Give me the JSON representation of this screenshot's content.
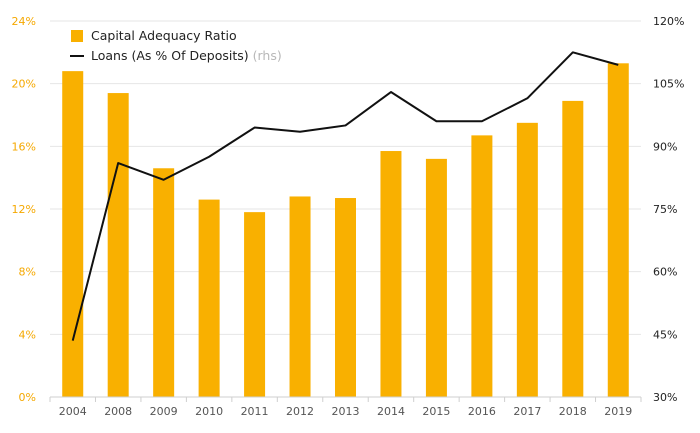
{
  "chart_data": {
    "type": "bar",
    "categories": [
      "2004",
      "2008",
      "2009",
      "2010",
      "2011",
      "2012",
      "2013",
      "2014",
      "2015",
      "2016",
      "2017",
      "2018",
      "2019"
    ],
    "series": [
      {
        "name": "Capital Adequacy Ratio",
        "type": "bar",
        "axis": "left",
        "values": [
          20.8,
          19.4,
          14.6,
          12.6,
          11.8,
          12.8,
          12.7,
          15.7,
          15.2,
          16.7,
          17.5,
          18.9,
          21.3
        ]
      },
      {
        "name": "Loans (As % Of Deposits)",
        "note": "(rhs)",
        "type": "line",
        "axis": "right",
        "values": [
          43.5,
          86.0,
          82.0,
          87.5,
          94.5,
          93.5,
          95.0,
          103.0,
          96.0,
          96.0,
          101.5,
          112.5,
          109.5
        ]
      }
    ],
    "y_left": {
      "ylim": [
        0,
        24
      ],
      "ticks": [
        0,
        4,
        8,
        12,
        16,
        20,
        24
      ],
      "tick_labels": [
        "0%",
        "4%",
        "8%",
        "12%",
        "16%",
        "20%",
        "24%"
      ]
    },
    "y_right": {
      "ylim": [
        30,
        120
      ],
      "ticks": [
        30,
        45,
        60,
        75,
        90,
        105,
        120
      ],
      "tick_labels": [
        "30%",
        "45%",
        "60%",
        "75%",
        "90%",
        "105%",
        "120%"
      ]
    },
    "grid": "horizontal",
    "legend_position": "top-left",
    "colors": {
      "bar": "#f9b000",
      "line": "#111111",
      "grid": "#e6e6e6",
      "left_axis_text": "#f5a800"
    }
  }
}
